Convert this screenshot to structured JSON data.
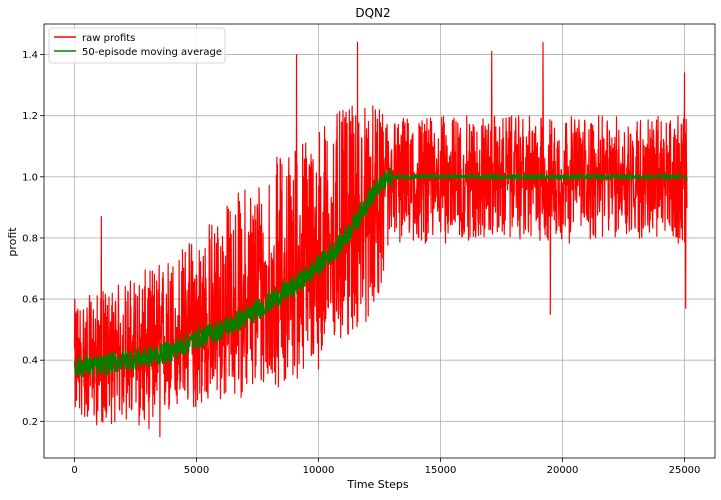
{
  "chart_data": {
    "type": "line",
    "title": "DQN2",
    "xlabel": "Time Steps",
    "ylabel": "profit",
    "xlim": [
      -1250,
      26250
    ],
    "ylim": [
      0.08,
      1.5
    ],
    "x_ticks": [
      0,
      5000,
      10000,
      15000,
      20000,
      25000
    ],
    "x_tick_labels": [
      "0",
      "5000",
      "10000",
      "15000",
      "20000",
      "25000"
    ],
    "y_ticks": [
      0.2,
      0.4,
      0.6,
      0.8,
      1.0,
      1.2,
      1.4
    ],
    "y_tick_labels": [
      "0.2",
      "0.4",
      "0.6",
      "0.8",
      "1.0",
      "1.2",
      "1.4"
    ],
    "grid": true,
    "legend_position": "upper-left",
    "series": [
      {
        "name": "raw profits",
        "color": "#ff0000",
        "x_range": [
          0,
          25100
        ],
        "envelope": {
          "x": [
            0,
            1000,
            2000,
            3000,
            4000,
            5000,
            6000,
            7000,
            8000,
            9000,
            10000,
            11000,
            12000,
            12500,
            13000,
            15000,
            17500,
            20000,
            22500,
            25000,
            25100
          ],
          "mean": [
            0.4,
            0.4,
            0.41,
            0.42,
            0.45,
            0.49,
            0.52,
            0.56,
            0.62,
            0.66,
            0.72,
            0.8,
            0.89,
            0.95,
            0.99,
            1.0,
            1.0,
            1.0,
            1.0,
            1.0,
            1.0
          ],
          "low": [
            0.22,
            0.18,
            0.2,
            0.17,
            0.22,
            0.24,
            0.26,
            0.28,
            0.3,
            0.33,
            0.37,
            0.45,
            0.52,
            0.62,
            0.78,
            0.78,
            0.8,
            0.78,
            0.8,
            0.78,
            0.75
          ],
          "high": [
            0.6,
            0.62,
            0.66,
            0.7,
            0.75,
            0.82,
            0.9,
            0.98,
            1.05,
            1.12,
            1.18,
            1.22,
            1.25,
            1.22,
            1.2,
            1.2,
            1.2,
            1.2,
            1.2,
            1.2,
            1.2
          ]
        },
        "highlights": [
          {
            "x": 1100,
            "y": 0.87
          },
          {
            "x": 3500,
            "y": 0.15
          },
          {
            "x": 9100,
            "y": 1.4
          },
          {
            "x": 11600,
            "y": 1.44
          },
          {
            "x": 17100,
            "y": 1.41
          },
          {
            "x": 19200,
            "y": 1.44
          },
          {
            "x": 19500,
            "y": 0.55
          },
          {
            "x": 25000,
            "y": 1.34
          },
          {
            "x": 25050,
            "y": 0.57
          }
        ]
      },
      {
        "name": "50-episode moving average",
        "color": "#008000",
        "x": [
          0,
          1000,
          2000,
          3000,
          4000,
          5000,
          6000,
          7000,
          8000,
          9000,
          10000,
          11000,
          11500,
          12000,
          12500,
          13000,
          15000,
          17500,
          20000,
          22500,
          25000,
          25100
        ],
        "values": [
          0.38,
          0.38,
          0.4,
          0.41,
          0.43,
          0.47,
          0.5,
          0.54,
          0.59,
          0.64,
          0.71,
          0.79,
          0.85,
          0.92,
          0.97,
          1.0,
          1.0,
          1.0,
          1.0,
          1.0,
          1.0,
          0.99
        ]
      }
    ]
  }
}
